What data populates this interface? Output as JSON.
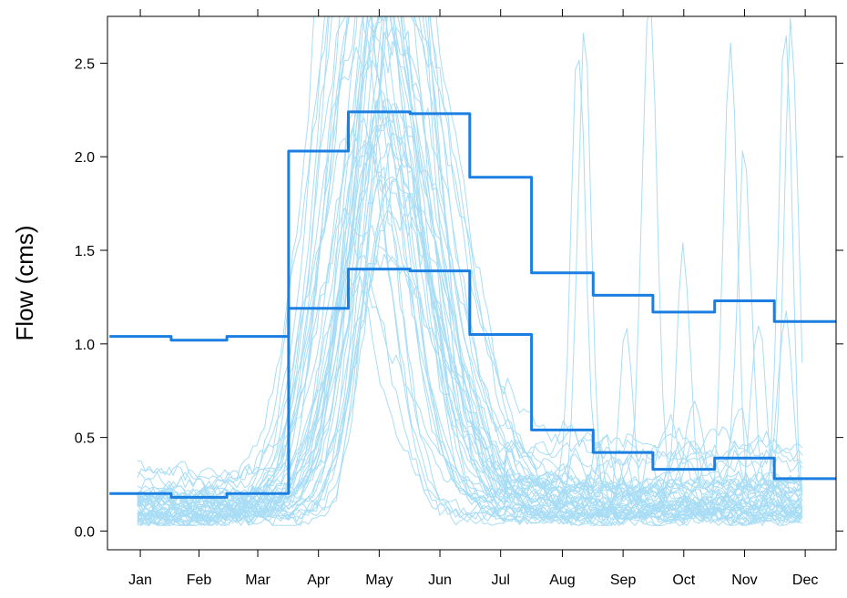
{
  "chart_data": {
    "type": "line",
    "title": "",
    "xlabel": "",
    "ylabel": "Flow (cms)",
    "x_tick_labels": [
      "Jan",
      "Feb",
      "Mar",
      "Apr",
      "May",
      "Jun",
      "Jul",
      "Aug",
      "Sep",
      "Oct",
      "Nov",
      "Dec"
    ],
    "y_ticks": [
      0.0,
      0.5,
      1.0,
      1.5,
      2.0,
      2.5
    ],
    "y_tick_labels": [
      "0.0",
      "0.5",
      "1.0",
      "1.5",
      "2.0",
      "2.5"
    ],
    "xlim": [
      0,
      366
    ],
    "ylim": [
      -0.1,
      2.75
    ],
    "grid": false,
    "colors": {
      "traces": "#a8ddf5",
      "summary": "#1a7fe0"
    },
    "daily_traces": {
      "description_for_generator": "many annual daily hydrographs (light blue)",
      "count": 48,
      "baseline_range": [
        0.04,
        0.34
      ],
      "peak_day_range": [
        120,
        150
      ],
      "peak_value_range": [
        1.0,
        4.0
      ]
    },
    "series": [
      {
        "label": "upper",
        "step_day": [
          1,
          32,
          60,
          91,
          121,
          152,
          182,
          213,
          244,
          274,
          305,
          335,
          366
        ],
        "values": [
          1.04,
          1.02,
          1.04,
          2.03,
          2.24,
          2.23,
          1.89,
          1.38,
          1.26,
          1.17,
          1.23,
          1.12
        ]
      },
      {
        "label": "lower",
        "step_day": [
          1,
          32,
          60,
          91,
          121,
          152,
          182,
          213,
          244,
          274,
          305,
          335,
          366
        ],
        "values": [
          0.2,
          0.18,
          0.2,
          1.19,
          1.4,
          1.39,
          1.05,
          0.54,
          0.42,
          0.33,
          0.39,
          0.28
        ]
      }
    ]
  }
}
